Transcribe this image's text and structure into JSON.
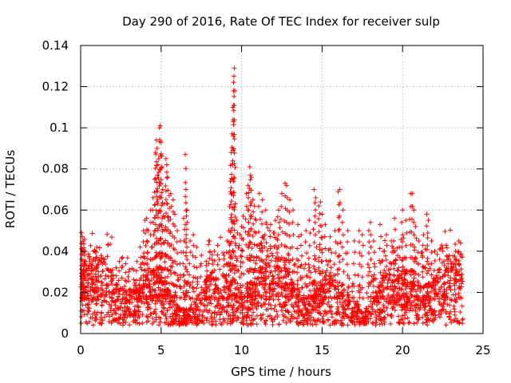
{
  "chart_data": {
    "type": "scatter",
    "title": "Day 290 of 2016, Rate Of TEC Index for receiver sulp",
    "xlabel": "GPS time / hours",
    "ylabel": "ROTI / TECUs",
    "xlim": [
      0,
      25
    ],
    "ylim": [
      0,
      0.14
    ],
    "x_ticks": [
      0,
      5,
      10,
      15,
      20,
      25
    ],
    "y_ticks": [
      0,
      0.02,
      0.04,
      0.06,
      0.08,
      0.1,
      0.12,
      0.14
    ],
    "x_tick_labels": [
      "0",
      "5",
      "10",
      "15",
      "20",
      "25"
    ],
    "y_tick_labels": [
      "0",
      "0.02",
      "0.04",
      "0.06",
      "0.08",
      "0.1",
      "0.12",
      "0.14"
    ],
    "grid": true,
    "marker": "plus",
    "marker_color": "#ff0000",
    "data_x_range_hours": [
      0,
      23.75
    ],
    "series": [
      {
        "name": "ROTI",
        "points": [
          [
            0.05,
            0.049
          ],
          [
            0.1,
            0.047
          ],
          [
            0.15,
            0.045
          ],
          [
            0.1,
            0.041
          ],
          [
            0.2,
            0.04
          ],
          [
            0.25,
            0.038
          ],
          [
            0.3,
            0.035
          ],
          [
            0.5,
            0.033
          ],
          [
            0.7,
            0.031
          ],
          [
            0.8,
            0.04
          ],
          [
            0.9,
            0.04
          ],
          [
            1.0,
            0.042
          ],
          [
            1.1,
            0.03
          ],
          [
            1.3,
            0.025
          ],
          [
            1.6,
            0.022
          ],
          [
            2.0,
            0.028
          ],
          [
            2.2,
            0.032
          ],
          [
            2.4,
            0.035
          ],
          [
            2.6,
            0.037
          ],
          [
            2.8,
            0.034
          ],
          [
            3.0,
            0.03
          ],
          [
            3.3,
            0.031
          ],
          [
            3.5,
            0.035
          ],
          [
            3.7,
            0.042
          ],
          [
            3.9,
            0.05
          ],
          [
            4.0,
            0.055
          ],
          [
            4.1,
            0.056
          ],
          [
            4.2,
            0.05
          ],
          [
            4.35,
            0.06
          ],
          [
            4.5,
            0.066
          ],
          [
            4.6,
            0.075
          ],
          [
            4.65,
            0.088
          ],
          [
            4.7,
            0.094
          ],
          [
            4.75,
            0.09
          ],
          [
            4.8,
            0.082
          ],
          [
            4.85,
            0.085
          ],
          [
            4.9,
            0.1
          ],
          [
            4.95,
            0.101
          ],
          [
            5.0,
            0.093
          ],
          [
            5.05,
            0.081
          ],
          [
            5.1,
            0.07
          ],
          [
            5.2,
            0.063
          ],
          [
            5.3,
            0.085
          ],
          [
            5.35,
            0.082
          ],
          [
            5.4,
            0.076
          ],
          [
            5.5,
            0.067
          ],
          [
            5.6,
            0.068
          ],
          [
            5.75,
            0.065
          ],
          [
            5.85,
            0.058
          ],
          [
            6.0,
            0.05
          ],
          [
            6.2,
            0.045
          ],
          [
            6.4,
            0.056
          ],
          [
            6.5,
            0.087
          ],
          [
            6.55,
            0.07
          ],
          [
            6.6,
            0.06
          ],
          [
            6.8,
            0.045
          ],
          [
            7.0,
            0.048
          ],
          [
            7.2,
            0.042
          ],
          [
            7.5,
            0.038
          ],
          [
            7.8,
            0.035
          ],
          [
            8.0,
            0.045
          ],
          [
            8.3,
            0.04
          ],
          [
            8.6,
            0.036
          ],
          [
            8.9,
            0.038
          ],
          [
            9.1,
            0.045
          ],
          [
            9.2,
            0.05
          ],
          [
            9.3,
            0.074
          ],
          [
            9.35,
            0.088
          ],
          [
            9.4,
            0.097
          ],
          [
            9.45,
            0.11
          ],
          [
            9.5,
            0.118
          ],
          [
            9.52,
            0.125
          ],
          [
            9.55,
            0.129
          ],
          [
            9.6,
            0.063
          ],
          [
            9.7,
            0.055
          ],
          [
            9.9,
            0.048
          ],
          [
            10.0,
            0.052
          ],
          [
            10.1,
            0.057
          ],
          [
            10.3,
            0.068
          ],
          [
            10.4,
            0.072
          ],
          [
            10.45,
            0.06
          ],
          [
            10.5,
            0.081
          ],
          [
            10.55,
            0.077
          ],
          [
            10.6,
            0.076
          ],
          [
            10.7,
            0.065
          ],
          [
            10.8,
            0.062
          ],
          [
            10.9,
            0.055
          ],
          [
            11.1,
            0.068
          ],
          [
            11.3,
            0.065
          ],
          [
            11.5,
            0.06
          ],
          [
            11.8,
            0.053
          ],
          [
            12.1,
            0.055
          ],
          [
            12.3,
            0.06
          ],
          [
            12.5,
            0.068
          ],
          [
            12.7,
            0.073
          ],
          [
            12.8,
            0.072
          ],
          [
            13.0,
            0.065
          ],
          [
            13.2,
            0.06
          ],
          [
            13.5,
            0.053
          ],
          [
            13.7,
            0.048
          ],
          [
            14.0,
            0.05
          ],
          [
            14.2,
            0.055
          ],
          [
            14.5,
            0.07
          ],
          [
            14.6,
            0.066
          ],
          [
            14.8,
            0.062
          ],
          [
            14.9,
            0.064
          ],
          [
            15.0,
            0.058
          ],
          [
            15.2,
            0.053
          ],
          [
            15.5,
            0.047
          ],
          [
            15.8,
            0.05
          ],
          [
            16.0,
            0.069
          ],
          [
            16.1,
            0.07
          ],
          [
            16.3,
            0.06
          ],
          [
            16.6,
            0.05
          ],
          [
            17.0,
            0.045
          ],
          [
            17.3,
            0.05
          ],
          [
            17.5,
            0.048
          ],
          [
            17.9,
            0.05
          ],
          [
            18.0,
            0.054
          ],
          [
            18.2,
            0.045
          ],
          [
            18.6,
            0.053
          ],
          [
            18.8,
            0.04
          ],
          [
            19.0,
            0.048
          ],
          [
            19.3,
            0.045
          ],
          [
            19.5,
            0.056
          ],
          [
            19.8,
            0.042
          ],
          [
            20.0,
            0.06
          ],
          [
            20.2,
            0.055
          ],
          [
            20.5,
            0.068
          ],
          [
            20.6,
            0.068
          ],
          [
            20.7,
            0.06
          ],
          [
            20.8,
            0.052
          ],
          [
            21.0,
            0.045
          ],
          [
            21.3,
            0.048
          ],
          [
            21.5,
            0.058
          ],
          [
            21.6,
            0.055
          ],
          [
            21.8,
            0.045
          ],
          [
            22.0,
            0.04
          ],
          [
            22.3,
            0.036
          ],
          [
            22.6,
            0.033
          ],
          [
            23.0,
            0.035
          ],
          [
            23.3,
            0.04
          ],
          [
            23.5,
            0.045
          ],
          [
            23.6,
            0.044
          ]
        ]
      }
    ]
  }
}
